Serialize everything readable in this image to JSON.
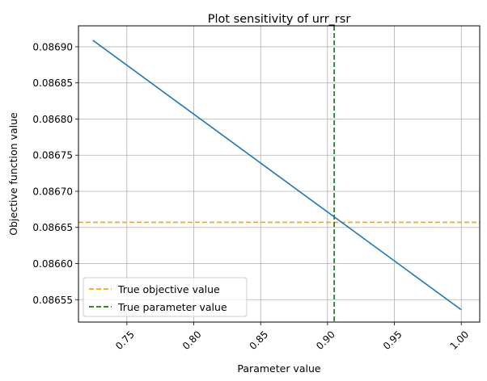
{
  "chart_data": {
    "type": "line",
    "title": "Plot sensitivity of urr_rsr",
    "xlabel": "Parameter value",
    "ylabel": "Objective function value",
    "xlim": [
      0.7138,
      1.0138
    ],
    "ylim": [
      0.086519,
      0.086929
    ],
    "x_ticks": [
      {
        "value": 0.75,
        "label": "0.75"
      },
      {
        "value": 0.8,
        "label": "0.80"
      },
      {
        "value": 0.85,
        "label": "0.85"
      },
      {
        "value": 0.9,
        "label": "0.90"
      },
      {
        "value": 0.95,
        "label": "0.95"
      },
      {
        "value": 1.0,
        "label": "1.00"
      }
    ],
    "y_ticks": [
      {
        "value": 0.08655,
        "label": "0.08655"
      },
      {
        "value": 0.0866,
        "label": "0.08660"
      },
      {
        "value": 0.08665,
        "label": "0.08665"
      },
      {
        "value": 0.0867,
        "label": "0.08670"
      },
      {
        "value": 0.08675,
        "label": "0.08675"
      },
      {
        "value": 0.0868,
        "label": "0.08680"
      },
      {
        "value": 0.08685,
        "label": "0.08685"
      },
      {
        "value": 0.0869,
        "label": "0.08690"
      }
    ],
    "grid": true,
    "legend_position": "lower-left",
    "series": [
      {
        "color": "#1f77b4",
        "x": [
          0.7245,
          1.0
        ],
        "y": [
          0.086909,
          0.086536
        ]
      }
    ],
    "reference_lines": [
      {
        "orientation": "horizontal",
        "value": 0.086657,
        "name": "True objective value",
        "color": "#ffa500",
        "style": "dashed"
      },
      {
        "orientation": "vertical",
        "value": 0.905,
        "name": "True parameter value",
        "color": "#008000",
        "style": "dashed"
      }
    ]
  }
}
